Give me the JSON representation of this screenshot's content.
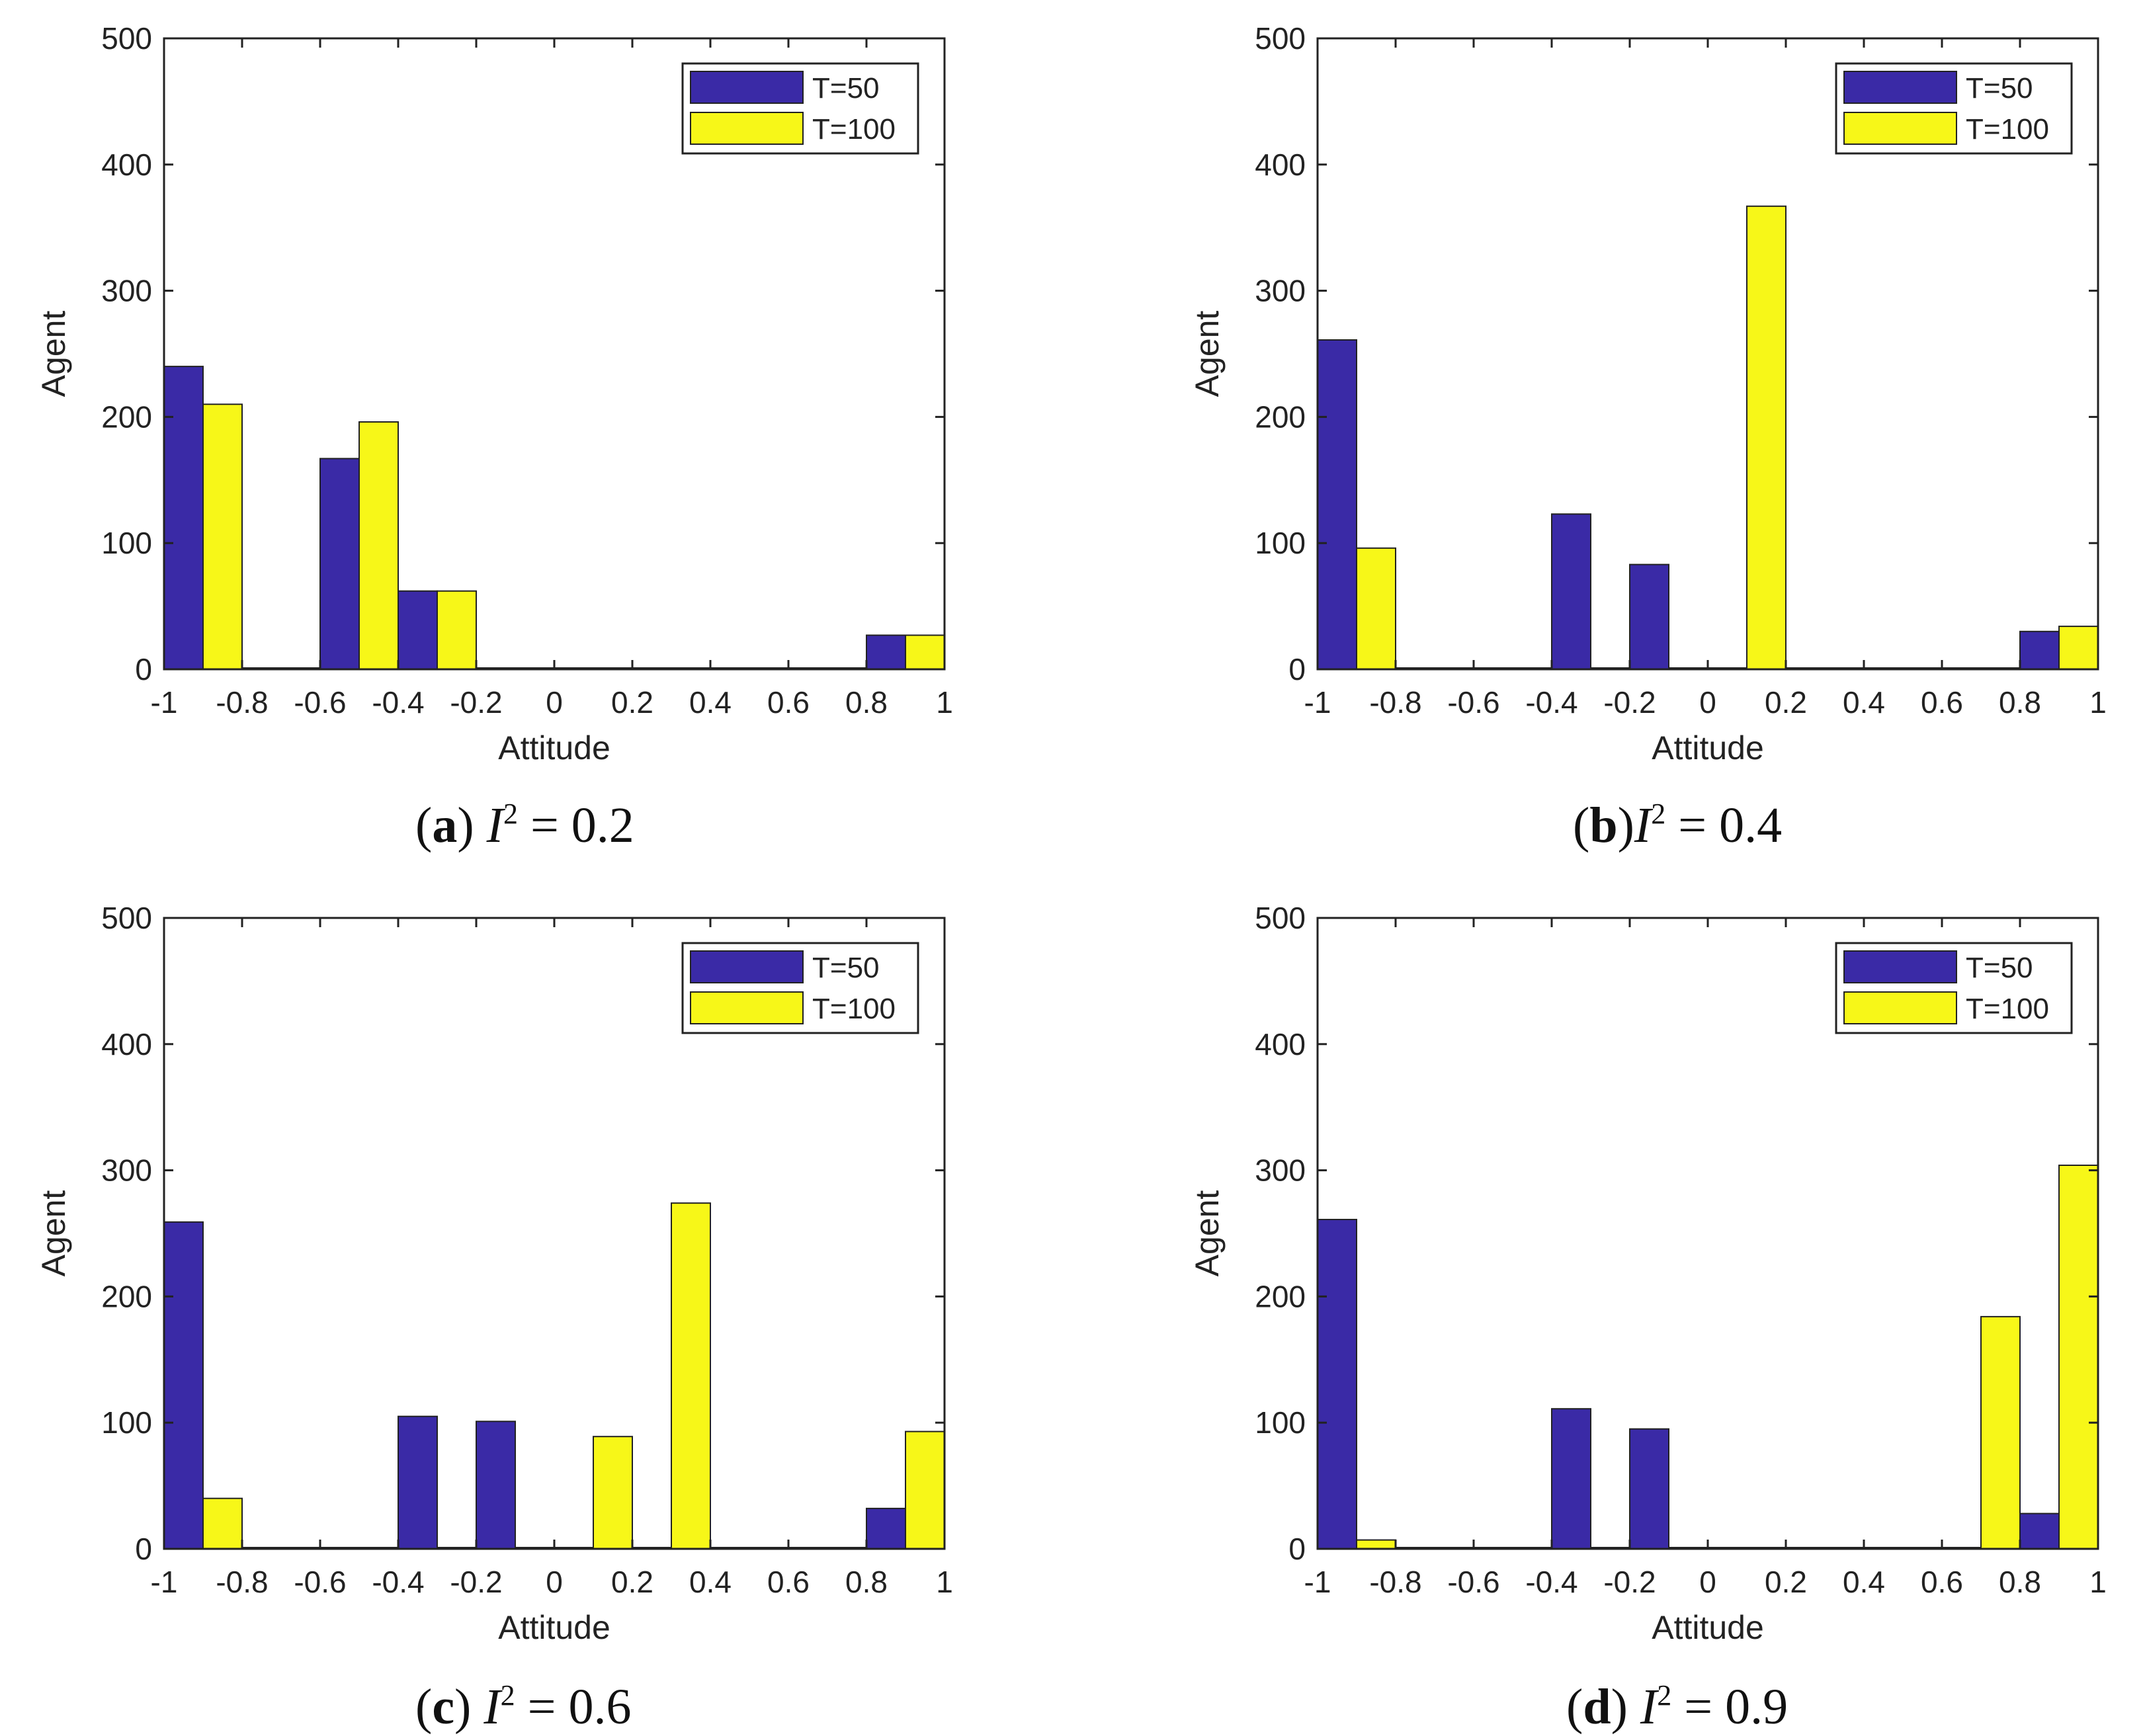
{
  "colors": {
    "t50": "#3a2aa6",
    "t100": "#f7f718",
    "axis": "#222222",
    "bar_edge": "#222222"
  },
  "chart_data": [
    {
      "type": "bar",
      "xlabel": "Attitude",
      "ylabel": "Agent",
      "xlim": [
        -1,
        1
      ],
      "ylim": [
        0,
        500
      ],
      "xticks": [
        "-1",
        "-0.8",
        "-0.6",
        "-0.4",
        "-0.2",
        "0",
        "0.2",
        "0.4",
        "0.6",
        "0.8",
        "1"
      ],
      "yticks": [
        "0",
        "100",
        "200",
        "300",
        "400",
        "500"
      ],
      "legend_position": "top-right",
      "bin_centers": [
        -0.9,
        -0.7,
        -0.5,
        -0.3,
        -0.1,
        0.1,
        0.3,
        0.5,
        0.7,
        0.9
      ],
      "series": [
        {
          "name": "T=50",
          "color": "#3a2aa6",
          "values": [
            240,
            0,
            167,
            62,
            0,
            0,
            0,
            0,
            0,
            27
          ]
        },
        {
          "name": "T=100",
          "color": "#f7f718",
          "values": [
            210,
            0,
            196,
            62,
            0,
            0,
            0,
            0,
            0,
            27
          ]
        }
      ],
      "caption": {
        "letter": "a",
        "var": "I",
        "exp": "2",
        "rest": " = 0.2",
        "sep": " "
      }
    },
    {
      "type": "bar",
      "xlabel": "Attitude",
      "ylabel": "Agent",
      "xlim": [
        -1,
        1
      ],
      "ylim": [
        0,
        500
      ],
      "xticks": [
        "-1",
        "-0.8",
        "-0.6",
        "-0.4",
        "-0.2",
        "0",
        "0.2",
        "0.4",
        "0.6",
        "0.8",
        "1"
      ],
      "yticks": [
        "0",
        "100",
        "200",
        "300",
        "400",
        "500"
      ],
      "legend_position": "top-right",
      "bin_centers": [
        -0.9,
        -0.7,
        -0.5,
        -0.3,
        -0.1,
        0.1,
        0.3,
        0.5,
        0.7,
        0.9
      ],
      "series": [
        {
          "name": "T=50",
          "color": "#3a2aa6",
          "values": [
            261,
            0,
            0,
            123,
            83,
            0,
            0,
            0,
            0,
            30
          ]
        },
        {
          "name": "T=100",
          "color": "#f7f718",
          "values": [
            96,
            0,
            0,
            0,
            0,
            367,
            0,
            0,
            0,
            34
          ]
        }
      ],
      "caption": {
        "letter": "b",
        "var": "I",
        "exp": "2",
        "rest": " = 0.4",
        "sep": ""
      }
    },
    {
      "type": "bar",
      "xlabel": "Attitude",
      "ylabel": "Agent",
      "xlim": [
        -1,
        1
      ],
      "ylim": [
        0,
        500
      ],
      "xticks": [
        "-1",
        "-0.8",
        "-0.6",
        "-0.4",
        "-0.2",
        "0",
        "0.2",
        "0.4",
        "0.6",
        "0.8",
        "1"
      ],
      "yticks": [
        "0",
        "100",
        "200",
        "300",
        "400",
        "500"
      ],
      "legend_position": "top-right",
      "bin_centers": [
        -0.9,
        -0.7,
        -0.5,
        -0.3,
        -0.1,
        0.1,
        0.3,
        0.5,
        0.7,
        0.9
      ],
      "series": [
        {
          "name": "T=50",
          "color": "#3a2aa6",
          "values": [
            259,
            0,
            0,
            105,
            101,
            0,
            0,
            0,
            0,
            32
          ]
        },
        {
          "name": "T=100",
          "color": "#f7f718",
          "values": [
            40,
            0,
            0,
            0,
            0,
            89,
            274,
            0,
            0,
            93
          ]
        }
      ],
      "caption": {
        "letter": "c",
        "var": "I",
        "exp": "2",
        "rest": " = 0.6",
        "sep": " "
      }
    },
    {
      "type": "bar",
      "xlabel": "Attitude",
      "ylabel": "Agent",
      "xlim": [
        -1,
        1
      ],
      "ylim": [
        0,
        500
      ],
      "xticks": [
        "-1",
        "-0.8",
        "-0.6",
        "-0.4",
        "-0.2",
        "0",
        "0.2",
        "0.4",
        "0.6",
        "0.8",
        "1"
      ],
      "yticks": [
        "0",
        "100",
        "200",
        "300",
        "400",
        "500"
      ],
      "legend_position": "top-right",
      "bin_centers": [
        -0.9,
        -0.7,
        -0.5,
        -0.3,
        -0.1,
        0.1,
        0.3,
        0.5,
        0.7,
        0.9
      ],
      "series": [
        {
          "name": "T=50",
          "color": "#3a2aa6",
          "values": [
            261,
            0,
            0,
            111,
            95,
            0,
            0,
            0,
            0,
            28
          ]
        },
        {
          "name": "T=100",
          "color": "#f7f718",
          "values": [
            7,
            0,
            0,
            0,
            0,
            0,
            0,
            0,
            184,
            304
          ]
        }
      ],
      "caption": {
        "letter": "d",
        "var": "I",
        "exp": "2",
        "rest": " = 0.9",
        "sep": " "
      }
    }
  ]
}
